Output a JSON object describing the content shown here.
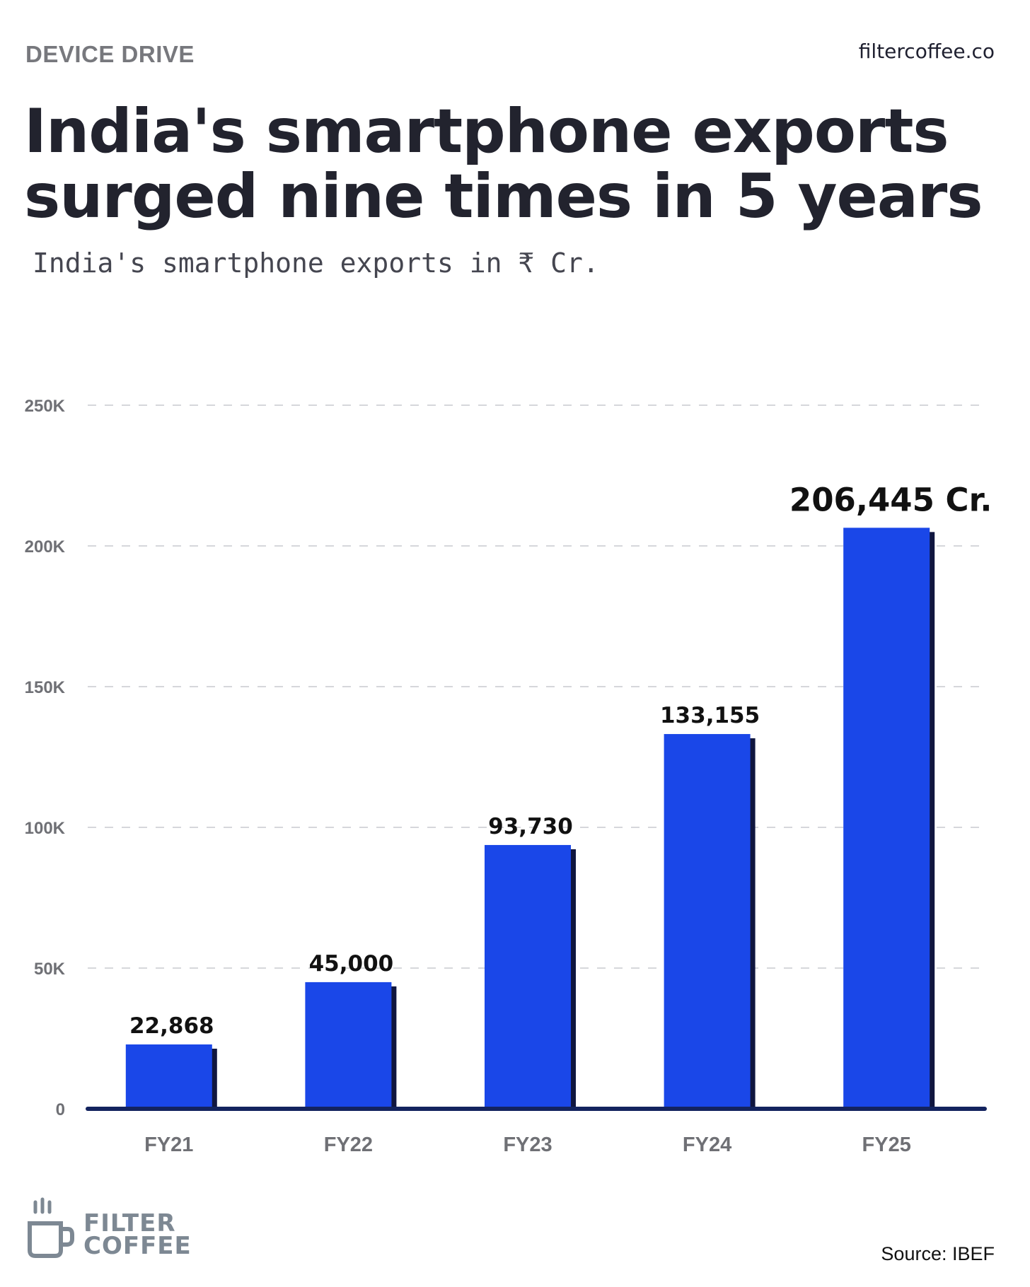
{
  "header": {
    "kicker": "DEVICE DRIVE",
    "site": "filtercoffee.co",
    "title_line1": "India's smartphone exports",
    "title_line2": "surged nine times in 5 years",
    "subtitle": "India's smartphone exports in ₹ Cr."
  },
  "chart_data": {
    "type": "bar",
    "title": "India's smartphone exports surged nine times in 5 years",
    "subtitle": "India's smartphone exports in ₹ Cr.",
    "categories": [
      "FY21",
      "FY22",
      "FY23",
      "FY24",
      "FY25"
    ],
    "values": [
      22868,
      45000,
      93730,
      133155,
      206445
    ],
    "value_labels": [
      "22,868",
      "45,000",
      "93,730",
      "133,155",
      "206,445 Cr."
    ],
    "xlabel": "",
    "ylabel": "",
    "ylim": [
      0,
      250000
    ],
    "yticks": [
      0,
      50000,
      100000,
      150000,
      200000,
      250000
    ],
    "ytick_labels": [
      "0",
      "50K",
      "100K",
      "150K",
      "200K",
      "250K"
    ],
    "grid": true,
    "bar_color": "#1a47e8",
    "shadow_color": "#10163f",
    "axis_color": "#13235e"
  },
  "footer": {
    "brand_line1": "FILTER",
    "brand_line2": "COFFEE",
    "source": "Source: IBEF"
  },
  "icons": {
    "brand_logo": "coffee-cup-icon"
  }
}
